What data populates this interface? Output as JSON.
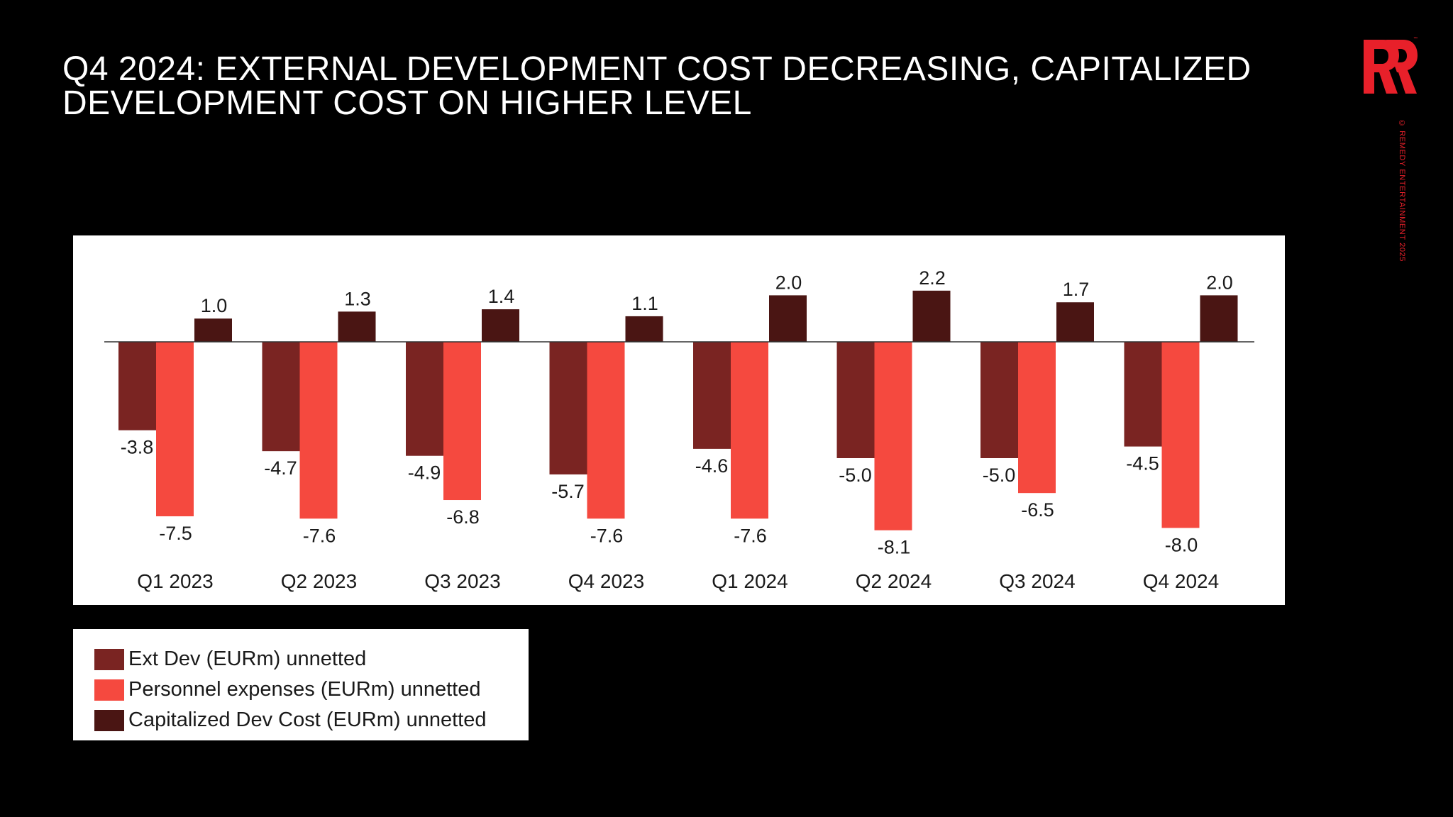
{
  "slide": {
    "title_lines": [
      "Q4 2024: EXTERNAL DEVELOPMENT COST DECREASING, CAPITALIZED",
      "DEVELOPMENT COST ON HIGHER LEVEL"
    ],
    "copyright": "© REMEDY ENTERTAINMENT 2025",
    "brand_color": "#e8202a"
  },
  "chart_data": {
    "type": "bar",
    "title": "",
    "xlabel": "",
    "ylabel": "",
    "categories": [
      "Q1 2023",
      "Q2 2023",
      "Q3 2023",
      "Q4 2023",
      "Q1 2024",
      "Q2 2024",
      "Q3 2024",
      "Q4 2024"
    ],
    "series": [
      {
        "name": "Ext Dev (EURm) unnetted",
        "color": "#7a2422",
        "values": [
          -3.8,
          -4.7,
          -4.9,
          -5.7,
          -4.6,
          -5.0,
          -5.0,
          -4.5
        ],
        "labels": [
          "-3.8",
          "-4.7",
          "-4.9",
          "-5.7",
          "-4.6",
          "-5.0",
          "-5.0",
          "-4.5"
        ]
      },
      {
        "name": "Personnel expenses (EURm) unnetted",
        "color": "#f5493f",
        "values": [
          -7.5,
          -7.6,
          -6.8,
          -7.6,
          -7.6,
          -8.1,
          -6.5,
          -8.0
        ],
        "labels": [
          "-7.5",
          "-7.6",
          "-6.8",
          "-7.6",
          "-7.6",
          "-8.1",
          "-6.5",
          "-8.0"
        ]
      },
      {
        "name": "Capitalized Dev Cost (EURm) unnetted",
        "color": "#4a1513",
        "values": [
          1.0,
          1.3,
          1.4,
          1.1,
          2.0,
          2.2,
          1.7,
          2.0
        ],
        "labels": [
          "1.0",
          "1.3",
          "1.4",
          "1.1",
          "2.0",
          "2.2",
          "1.7",
          "2.0"
        ]
      }
    ],
    "ylim": [
      -8.5,
      4.5
    ],
    "grid": false,
    "legend": "bottom-left"
  }
}
